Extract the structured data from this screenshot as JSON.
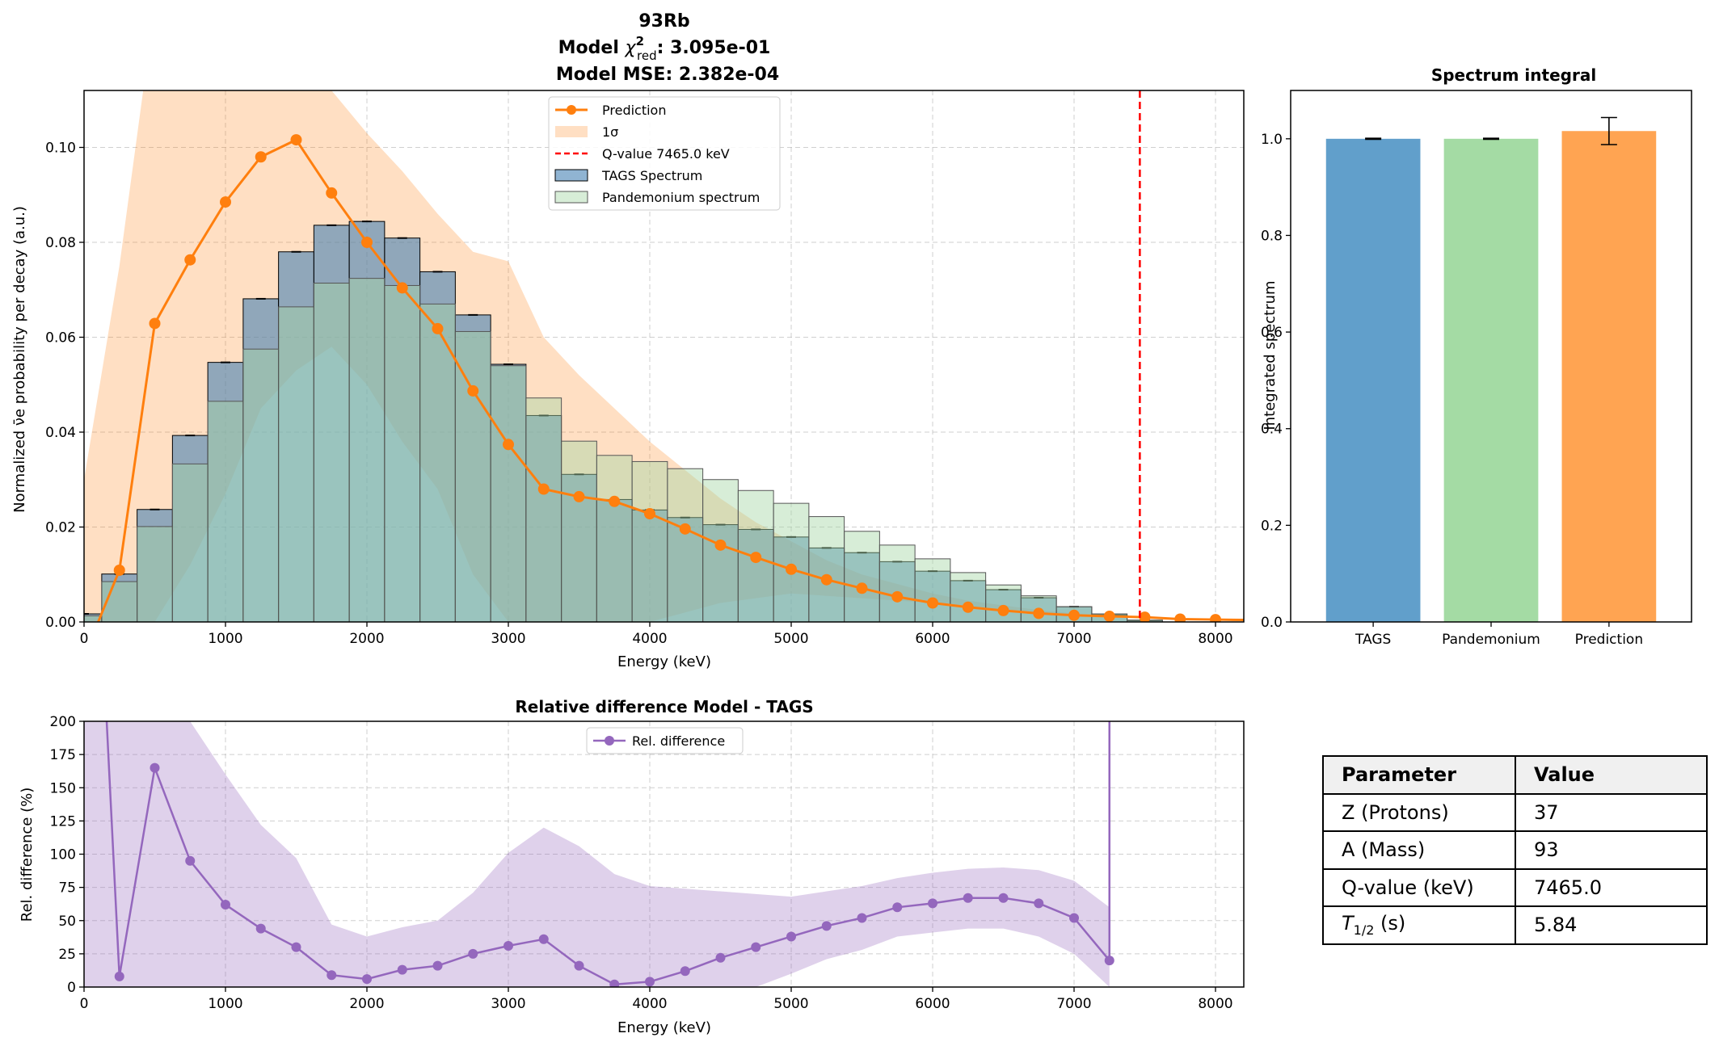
{
  "colors": {
    "prediction": "#ff7f0e",
    "tags": "#4682b4",
    "pandemonium": "#a6d8a6",
    "qvalue": "#ff0000",
    "reldiff": "#9467bd",
    "bar_tags": "#619fcb",
    "bar_pand": "#a4dba4",
    "bar_pred": "#ffa452"
  },
  "main_title": {
    "line1": "93Rb",
    "line2_prefix": "Model ",
    "line2_chi": "χ",
    "line2_sup": "2",
    "line2_sub": "red",
    "line2_suffix": ": 3.095e-01",
    "line3": "Model MSE: 2.382e-04"
  },
  "chart_data": [
    {
      "type": "bar",
      "panel": "spectrum",
      "xlabel": "Energy (keV)",
      "ylabel": "Normalized ν̄e probability per decay (a.u.)",
      "xlim": [
        0,
        8200
      ],
      "ylim": [
        0,
        0.112
      ],
      "xticks": [
        "0",
        "1000",
        "2000",
        "3000",
        "4000",
        "5000",
        "6000",
        "7000",
        "8000"
      ],
      "xtick_values": [
        0,
        1000,
        2000,
        3000,
        4000,
        5000,
        6000,
        7000,
        8000
      ],
      "yticks": [
        "0.00",
        "0.02",
        "0.04",
        "0.06",
        "0.08",
        "0.10"
      ],
      "ytick_values": [
        0,
        0.02,
        0.04,
        0.06,
        0.08,
        0.1
      ],
      "grid": true,
      "legend_position": "top-center",
      "legend": [
        "Prediction",
        "1σ",
        "Q-value 7465.0 keV",
        "TAGS Spectrum",
        "Pandemonium spectrum"
      ],
      "bin_width": 250,
      "bin_centers": [
        0,
        250,
        500,
        750,
        1000,
        1250,
        1500,
        1750,
        2000,
        2250,
        2500,
        2750,
        3000,
        3250,
        3500,
        3750,
        4000,
        4250,
        4500,
        4750,
        5000,
        5250,
        5500,
        5750,
        6000,
        6250,
        6500,
        6750,
        7000,
        7250,
        7500
      ],
      "tags": [
        0.0017,
        0.0101,
        0.0237,
        0.0393,
        0.0547,
        0.0681,
        0.078,
        0.0836,
        0.0844,
        0.0809,
        0.0738,
        0.0647,
        0.0543,
        0.0435,
        0.0311,
        0.0258,
        0.0236,
        0.022,
        0.0205,
        0.0195,
        0.0179,
        0.0156,
        0.0146,
        0.0127,
        0.0107,
        0.0087,
        0.0068,
        0.0051,
        0.0032,
        0.0015,
        0.0003
      ],
      "pandemonium": [
        0.0013,
        0.0085,
        0.0201,
        0.0333,
        0.0465,
        0.0575,
        0.0664,
        0.0714,
        0.0724,
        0.0709,
        0.067,
        0.0612,
        0.054,
        0.0472,
        0.0381,
        0.0351,
        0.0338,
        0.0323,
        0.03,
        0.0277,
        0.025,
        0.0222,
        0.0191,
        0.0162,
        0.0133,
        0.0104,
        0.0078,
        0.0055,
        0.0032,
        0.0017,
        0.0004
      ],
      "prediction": {
        "name": "Prediction",
        "x": [
          100,
          250,
          500,
          750,
          1000,
          1250,
          1500,
          1750,
          2000,
          2250,
          2500,
          2750,
          3000,
          3250,
          3500,
          3750,
          4000,
          4250,
          4500,
          4750,
          5000,
          5250,
          5500,
          5750,
          6000,
          6250,
          6500,
          6750,
          7000,
          7250,
          7500,
          7750,
          8000,
          8250
        ],
        "y": [
          0.0,
          0.0109,
          0.0629,
          0.0763,
          0.0885,
          0.098,
          0.1016,
          0.0904,
          0.08,
          0.0704,
          0.0618,
          0.0487,
          0.0374,
          0.028,
          0.0264,
          0.0254,
          0.0228,
          0.0196,
          0.0162,
          0.0136,
          0.0111,
          0.0089,
          0.0071,
          0.0053,
          0.004,
          0.0031,
          0.0024,
          0.0018,
          0.0014,
          0.0012,
          0.001,
          0.0006,
          0.0005,
          0.0004
        ]
      },
      "sigma_band": {
        "name": "1σ",
        "x": [
          0,
          250,
          500,
          750,
          1000,
          1250,
          1500,
          1750,
          2000,
          2250,
          2500,
          2750,
          3000,
          3250,
          3500,
          3750,
          4000,
          4250,
          4500,
          4750,
          5000,
          5250,
          5500,
          5750,
          6000,
          6250,
          6500,
          6750,
          7000,
          7250,
          7500,
          7750,
          8000,
          8200
        ],
        "upper": [
          0.03,
          0.075,
          0.13,
          0.15,
          0.15,
          0.15,
          0.14,
          0.112,
          0.103,
          0.095,
          0.086,
          0.078,
          0.076,
          0.06,
          0.052,
          0.045,
          0.038,
          0.032,
          0.026,
          0.021,
          0.017,
          0.013,
          0.01,
          0.008,
          0.006,
          0.0045,
          0.0035,
          0.0025,
          0.0018,
          0.0013,
          0.0009,
          0.0006,
          0.0004,
          0.0003
        ],
        "lower": [
          0.0,
          0.0,
          0.0,
          0.012,
          0.027,
          0.045,
          0.053,
          0.058,
          0.05,
          0.038,
          0.028,
          0.01,
          0.0,
          0.0,
          0.0,
          0.0,
          0.0,
          0.002,
          0.004,
          0.005,
          0.006,
          0.0055,
          0.005,
          0.0045,
          0.004,
          0.003,
          0.0025,
          0.002,
          0.0015,
          0.001,
          0.0008,
          0.0005,
          0.0003,
          0.0002
        ]
      },
      "qvalue_x": 7465.0
    },
    {
      "type": "bar",
      "panel": "integral",
      "title": "Spectrum integral",
      "ylabel": "Integrated spectrum",
      "categories": [
        "TAGS",
        "Pandemonium",
        "Prediction"
      ],
      "values": [
        1.0,
        1.0,
        1.016
      ],
      "errors": [
        0.001,
        0.001,
        0.028
      ],
      "ylim": [
        0,
        1.1
      ],
      "yticks": [
        "0.0",
        "0.2",
        "0.4",
        "0.6",
        "0.8",
        "1.0"
      ],
      "ytick_values": [
        0,
        0.2,
        0.4,
        0.6,
        0.8,
        1.0
      ],
      "grid": false
    },
    {
      "type": "line",
      "panel": "reldiff",
      "title": "Relative difference Model - TAGS",
      "xlabel": "Energy (keV)",
      "ylabel": "Rel. difference (%)",
      "xlim": [
        0,
        8200
      ],
      "ylim": [
        0,
        200
      ],
      "xticks": [
        "0",
        "1000",
        "2000",
        "3000",
        "4000",
        "5000",
        "6000",
        "7000",
        "8000"
      ],
      "xtick_values": [
        0,
        1000,
        2000,
        3000,
        4000,
        5000,
        6000,
        7000,
        8000
      ],
      "yticks": [
        "0",
        "25",
        "50",
        "75",
        "100",
        "125",
        "150",
        "175",
        "200"
      ],
      "ytick_values": [
        0,
        25,
        50,
        75,
        100,
        125,
        150,
        175,
        200
      ],
      "grid": true,
      "legend_position": "top-center",
      "legend": [
        "Rel. difference"
      ],
      "series": [
        {
          "name": "Rel. difference",
          "x": [
            250,
            500,
            750,
            1000,
            1250,
            1500,
            1750,
            2000,
            2250,
            2500,
            2750,
            3000,
            3250,
            3500,
            3750,
            4000,
            4250,
            4500,
            4750,
            5000,
            5250,
            5500,
            5750,
            6000,
            6250,
            6500,
            6750,
            7000,
            7250
          ],
          "y": [
            8,
            165,
            95,
            62,
            44,
            30,
            9,
            6,
            13,
            16,
            25,
            31,
            36,
            16,
            2,
            4,
            12,
            22,
            30,
            38,
            46,
            52,
            60,
            63,
            67,
            67,
            63,
            52,
            20
          ]
        }
      ],
      "left_segment": {
        "x": [
          160,
          250
        ],
        "y": [
          200,
          8
        ]
      },
      "right_spike": {
        "x": [
          7250,
          7250
        ],
        "y": [
          20,
          200
        ]
      },
      "band": {
        "x": [
          0,
          250,
          500,
          750,
          1000,
          1250,
          1500,
          1750,
          2000,
          2250,
          2500,
          2750,
          3000,
          3250,
          3500,
          3750,
          4000,
          4250,
          4500,
          4750,
          5000,
          5250,
          5500,
          5750,
          6000,
          6250,
          6500,
          6750,
          7000,
          7250
        ],
        "upper": [
          200,
          200,
          200,
          200,
          160,
          122,
          97,
          47,
          38,
          45,
          50,
          71,
          101,
          120,
          106,
          85,
          76,
          74,
          72,
          70,
          68,
          72,
          76,
          82,
          86,
          89,
          90,
          88,
          80,
          60
        ],
        "lower": [
          0,
          0,
          0,
          0,
          0,
          0,
          0,
          0,
          0,
          0,
          0,
          0,
          0,
          0,
          0,
          0,
          0,
          0,
          0,
          0,
          10,
          21,
          28,
          38,
          41,
          44,
          44,
          38,
          25,
          0
        ]
      }
    }
  ],
  "param_table": {
    "headers": [
      "Parameter",
      "Value"
    ],
    "rows": [
      {
        "name": "Z (Protons)",
        "value": "37"
      },
      {
        "name": "A (Mass)",
        "value": "93"
      },
      {
        "name": "Q-value (keV)",
        "value": "7465.0"
      },
      {
        "name_main": "T",
        "name_sub": "1/2",
        "name_unit": " (s)",
        "value": "5.84"
      }
    ]
  }
}
